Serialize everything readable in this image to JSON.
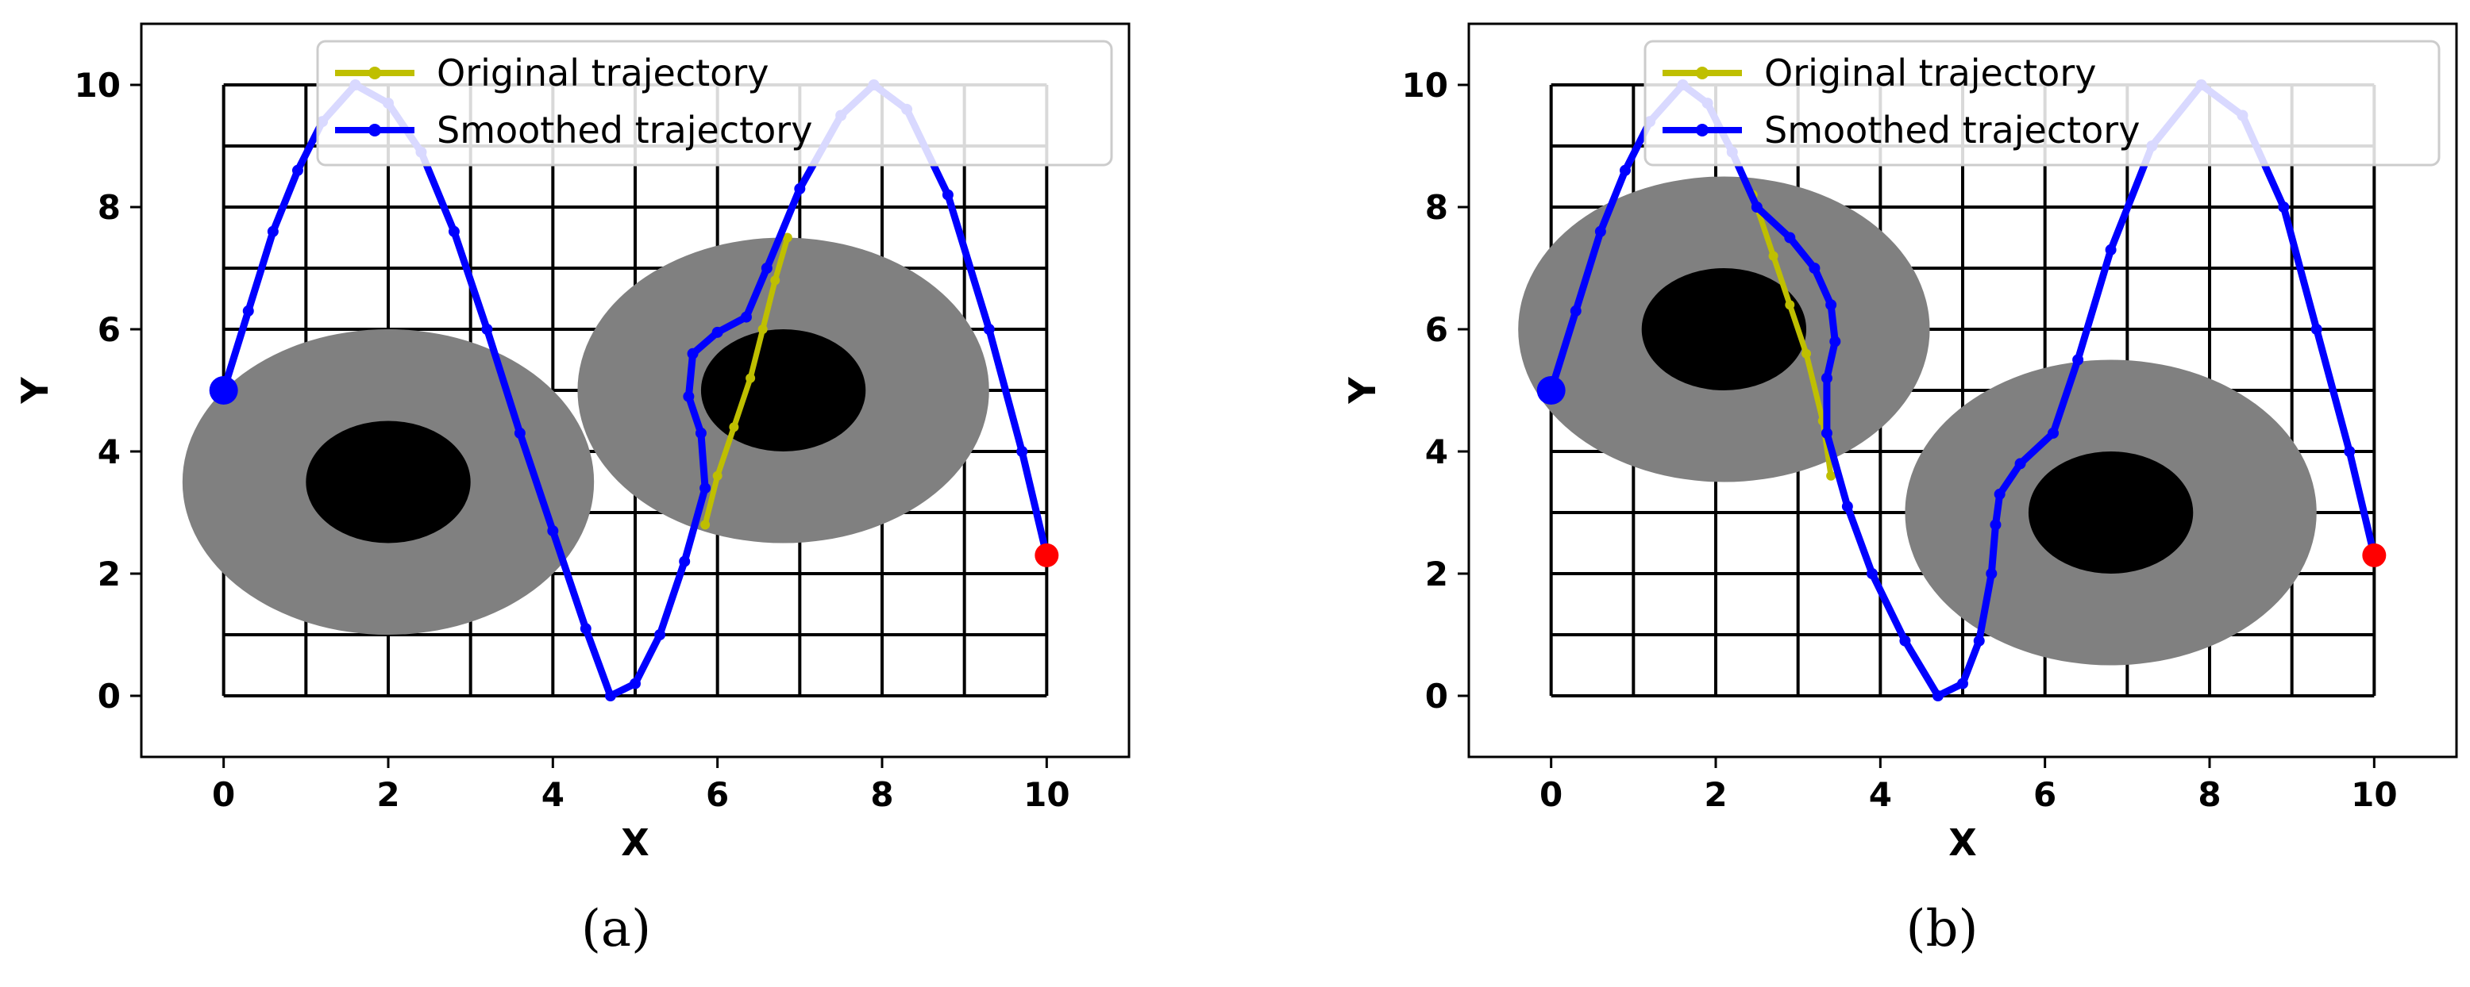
{
  "chart_data": [
    {
      "type": "line",
      "caption": "(a)",
      "xlabel": "X",
      "ylabel": "Y",
      "xlim": [
        -1,
        11
      ],
      "ylim": [
        -1,
        11
      ],
      "xticks": [
        0,
        2,
        4,
        6,
        8,
        10
      ],
      "yticks": [
        0,
        2,
        4,
        6,
        8,
        10
      ],
      "grid": {
        "x": [
          0,
          1,
          2,
          3,
          4,
          5,
          6,
          7,
          8,
          9,
          10
        ],
        "y": [
          0,
          1,
          2,
          3,
          4,
          5,
          6,
          7,
          8,
          9,
          10
        ],
        "color": "#000000"
      },
      "legend": {
        "placement": "top-right",
        "entries": [
          "Original trajectory",
          "Smoothed trajectory"
        ]
      },
      "obstacles": [
        {
          "cx": 2.0,
          "cy": 3.5,
          "outer_rx": 2.5,
          "outer_ry": 2.5,
          "inner_rx": 1.0,
          "inner_ry": 1.0,
          "outer_color": "#808080",
          "inner_color": "#000000"
        },
        {
          "cx": 6.8,
          "cy": 5.0,
          "outer_rx": 2.5,
          "outer_ry": 2.5,
          "inner_rx": 1.0,
          "inner_ry": 1.0,
          "outer_color": "#808080",
          "inner_color": "#000000"
        }
      ],
      "series": [
        {
          "name": "Original trajectory",
          "color": "#bfbf00",
          "points": [
            [
              5.85,
              2.8
            ],
            [
              6.0,
              3.6
            ],
            [
              6.2,
              4.4
            ],
            [
              6.4,
              5.2
            ],
            [
              6.55,
              6.0
            ],
            [
              6.7,
              6.8
            ],
            [
              6.85,
              7.5
            ]
          ]
        },
        {
          "name": "Smoothed trajectory",
          "color": "#0000ff",
          "points": [
            [
              0,
              5
            ],
            [
              0.3,
              6.3
            ],
            [
              0.6,
              7.6
            ],
            [
              0.9,
              8.6
            ],
            [
              1.2,
              9.4
            ],
            [
              1.6,
              10
            ],
            [
              2.0,
              9.7
            ],
            [
              2.4,
              8.9
            ],
            [
              2.8,
              7.6
            ],
            [
              3.2,
              6.0
            ],
            [
              3.6,
              4.3
            ],
            [
              4.0,
              2.7
            ],
            [
              4.4,
              1.1
            ],
            [
              4.7,
              0.0
            ],
            [
              5.0,
              0.2
            ],
            [
              5.3,
              1.0
            ],
            [
              5.6,
              2.2
            ],
            [
              5.85,
              3.4
            ],
            [
              5.8,
              4.3
            ],
            [
              5.65,
              4.9
            ],
            [
              5.7,
              5.6
            ],
            [
              6.0,
              5.95
            ],
            [
              6.35,
              6.2
            ],
            [
              6.6,
              7.0
            ],
            [
              7.0,
              8.3
            ],
            [
              7.5,
              9.5
            ],
            [
              7.9,
              10
            ],
            [
              8.3,
              9.6
            ],
            [
              8.8,
              8.2
            ],
            [
              9.3,
              6.0
            ],
            [
              9.7,
              4.0
            ],
            [
              10,
              2.3
            ]
          ]
        }
      ],
      "start": {
        "x": 0,
        "y": 5,
        "color": "#0000ff"
      },
      "goal": {
        "x": 10,
        "y": 2.3,
        "color": "#ff0000"
      }
    },
    {
      "type": "line",
      "caption": "(b)",
      "xlabel": "X",
      "ylabel": "Y",
      "xlim": [
        -1,
        11
      ],
      "ylim": [
        -1,
        11
      ],
      "xticks": [
        0,
        2,
        4,
        6,
        8,
        10
      ],
      "yticks": [
        0,
        2,
        4,
        6,
        8,
        10
      ],
      "grid": {
        "x": [
          0,
          1,
          2,
          3,
          4,
          5,
          6,
          7,
          8,
          9,
          10
        ],
        "y": [
          0,
          1,
          2,
          3,
          4,
          5,
          6,
          7,
          8,
          9,
          10
        ],
        "color": "#000000"
      },
      "legend": {
        "placement": "top-right",
        "entries": [
          "Original trajectory",
          "Smoothed trajectory"
        ]
      },
      "obstacles": [
        {
          "cx": 2.1,
          "cy": 6.0,
          "outer_rx": 2.5,
          "outer_ry": 2.5,
          "inner_rx": 1.0,
          "inner_ry": 1.0,
          "outer_color": "#808080",
          "inner_color": "#000000"
        },
        {
          "cx": 6.8,
          "cy": 3.0,
          "outer_rx": 2.5,
          "outer_ry": 2.5,
          "inner_rx": 1.0,
          "inner_ry": 1.0,
          "outer_color": "#808080",
          "inner_color": "#000000"
        }
      ],
      "series": [
        {
          "name": "Original trajectory",
          "color": "#bfbf00",
          "points": [
            [
              2.45,
              8.2
            ],
            [
              2.7,
              7.2
            ],
            [
              2.9,
              6.4
            ],
            [
              3.1,
              5.6
            ],
            [
              3.3,
              4.5
            ],
            [
              3.4,
              3.6
            ]
          ]
        },
        {
          "name": "Smoothed trajectory",
          "color": "#0000ff",
          "points": [
            [
              0,
              5
            ],
            [
              0.3,
              6.3
            ],
            [
              0.6,
              7.6
            ],
            [
              0.9,
              8.6
            ],
            [
              1.2,
              9.4
            ],
            [
              1.6,
              10
            ],
            [
              1.9,
              9.7
            ],
            [
              2.2,
              8.9
            ],
            [
              2.5,
              8.0
            ],
            [
              2.9,
              7.5
            ],
            [
              3.2,
              7.0
            ],
            [
              3.4,
              6.4
            ],
            [
              3.45,
              5.8
            ],
            [
              3.35,
              5.2
            ],
            [
              3.35,
              4.3
            ],
            [
              3.6,
              3.1
            ],
            [
              3.9,
              2.0
            ],
            [
              4.3,
              0.9
            ],
            [
              4.7,
              0.0
            ],
            [
              5.0,
              0.2
            ],
            [
              5.2,
              0.9
            ],
            [
              5.35,
              2.0
            ],
            [
              5.4,
              2.8
            ],
            [
              5.45,
              3.3
            ],
            [
              5.7,
              3.8
            ],
            [
              6.1,
              4.3
            ],
            [
              6.4,
              5.5
            ],
            [
              6.8,
              7.3
            ],
            [
              7.3,
              9.0
            ],
            [
              7.9,
              10
            ],
            [
              8.4,
              9.5
            ],
            [
              8.9,
              8.0
            ],
            [
              9.3,
              6.0
            ],
            [
              9.7,
              4.0
            ],
            [
              10,
              2.3
            ]
          ]
        }
      ],
      "start": {
        "x": 0,
        "y": 5,
        "color": "#0000ff"
      },
      "goal": {
        "x": 10,
        "y": 2.3,
        "color": "#ff0000"
      }
    }
  ]
}
